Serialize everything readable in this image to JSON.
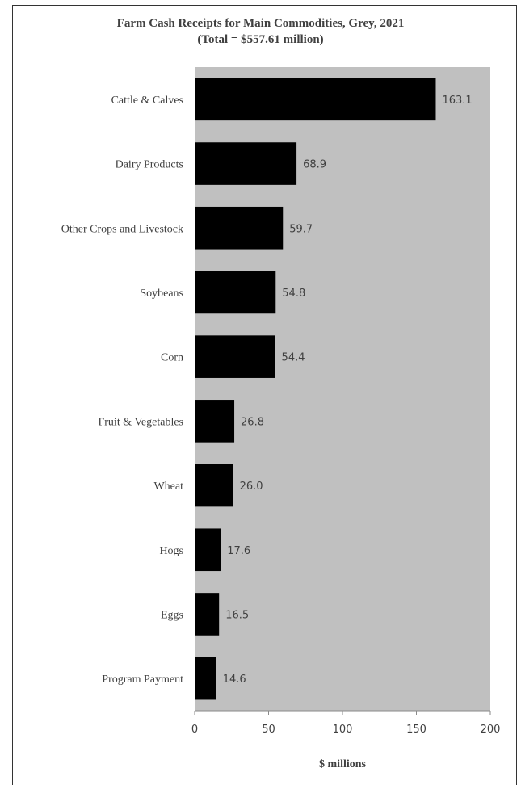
{
  "chart_data": {
    "type": "bar",
    "orientation": "horizontal",
    "title": "Farm Cash Receipts for Main Commodities, Grey, 2021",
    "subtitle": "(Total = $557.61 million)",
    "categories": [
      "Cattle & Calves",
      "Dairy Products",
      "Other Crops and Livestock",
      "Soybeans",
      "Corn",
      "Fruit & Vegetables",
      "Wheat",
      "Hogs",
      "Eggs",
      "Program Payment"
    ],
    "values": [
      163.1,
      68.9,
      59.7,
      54.8,
      54.4,
      26.8,
      26.0,
      17.6,
      16.5,
      14.6
    ],
    "value_labels": [
      "163.1",
      "68.9",
      "59.7",
      "54.8",
      "54.4",
      "26.8",
      "26.0",
      "17.6",
      "16.5",
      "14.6"
    ],
    "xlabel": "$ millions",
    "ylabel": "",
    "xlim": [
      0,
      200
    ],
    "xticks": [
      0,
      50,
      100,
      150,
      200
    ],
    "grid": false,
    "colors": {
      "bar": "#000000",
      "plot_background": "#c0c0c0",
      "text": "#404040"
    }
  }
}
